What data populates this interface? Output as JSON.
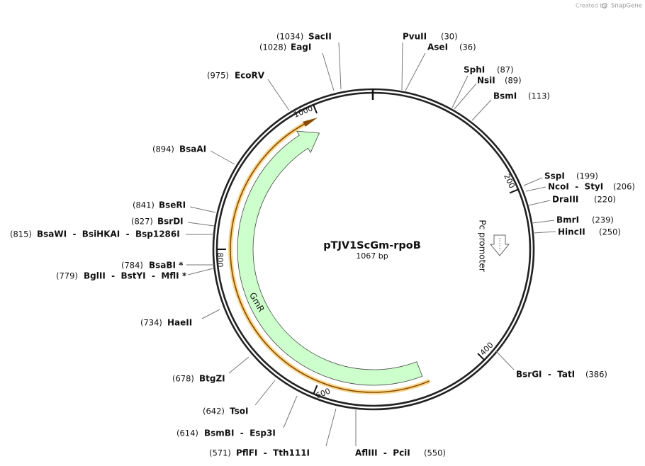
{
  "header": {
    "credit": "Created by",
    "brand": "SnapGene"
  },
  "plasmid": {
    "name": "pTJV1ScGm-rpoB",
    "size": "1067 bp"
  },
  "ticks": [
    "200",
    "400",
    "600",
    "800",
    "1000"
  ],
  "features": [
    {
      "label": "GmR"
    },
    {
      "label": "Pc promoter"
    }
  ],
  "sites": [
    {
      "name": "SacII",
      "position": "(1034)"
    },
    {
      "name": "EagI",
      "position": "(1028)"
    },
    {
      "name": "PvuII",
      "position": "(30)"
    },
    {
      "name": "AseI",
      "position": "(36)"
    },
    {
      "name": "SphI",
      "position": "(87)"
    },
    {
      "name": "NsiI",
      "position": "(89)"
    },
    {
      "name": "BsmI",
      "position": "(113)"
    },
    {
      "name": "SspI",
      "position": "(199)"
    },
    {
      "name": "NcoI  -  StyI",
      "position": "(206)"
    },
    {
      "name": "DraIII",
      "position": "(220)"
    },
    {
      "name": "BmrI",
      "position": "(239)"
    },
    {
      "name": "HincII",
      "position": "(250)"
    },
    {
      "name": "BsrGI  -  TatI",
      "position": "(386)"
    },
    {
      "name": "AflIII  -  PciI",
      "position": "(550)"
    },
    {
      "name": "PflFI  -  Tth111I",
      "position": "(571)"
    },
    {
      "name": "BsmBI  -  Esp3I",
      "position": "(614)"
    },
    {
      "name": "TsoI",
      "position": "(642)"
    },
    {
      "name": "BtgZI",
      "position": "(678)"
    },
    {
      "name": "HaeII",
      "position": "(734)"
    },
    {
      "name": "BglII  -  BstYI  -  MflI *",
      "position": "(779)"
    },
    {
      "name": "BsaBI *",
      "position": "(784)"
    },
    {
      "name": "BsaWI  -  BsiHKAI  -  Bsp1286I",
      "position": "(815)"
    },
    {
      "name": "BsrDI",
      "position": "(827)"
    },
    {
      "name": "BseRI",
      "position": "(841)"
    },
    {
      "name": "BsaAI",
      "position": "(894)"
    },
    {
      "name": "EcoRV",
      "position": "(975)"
    }
  ]
}
